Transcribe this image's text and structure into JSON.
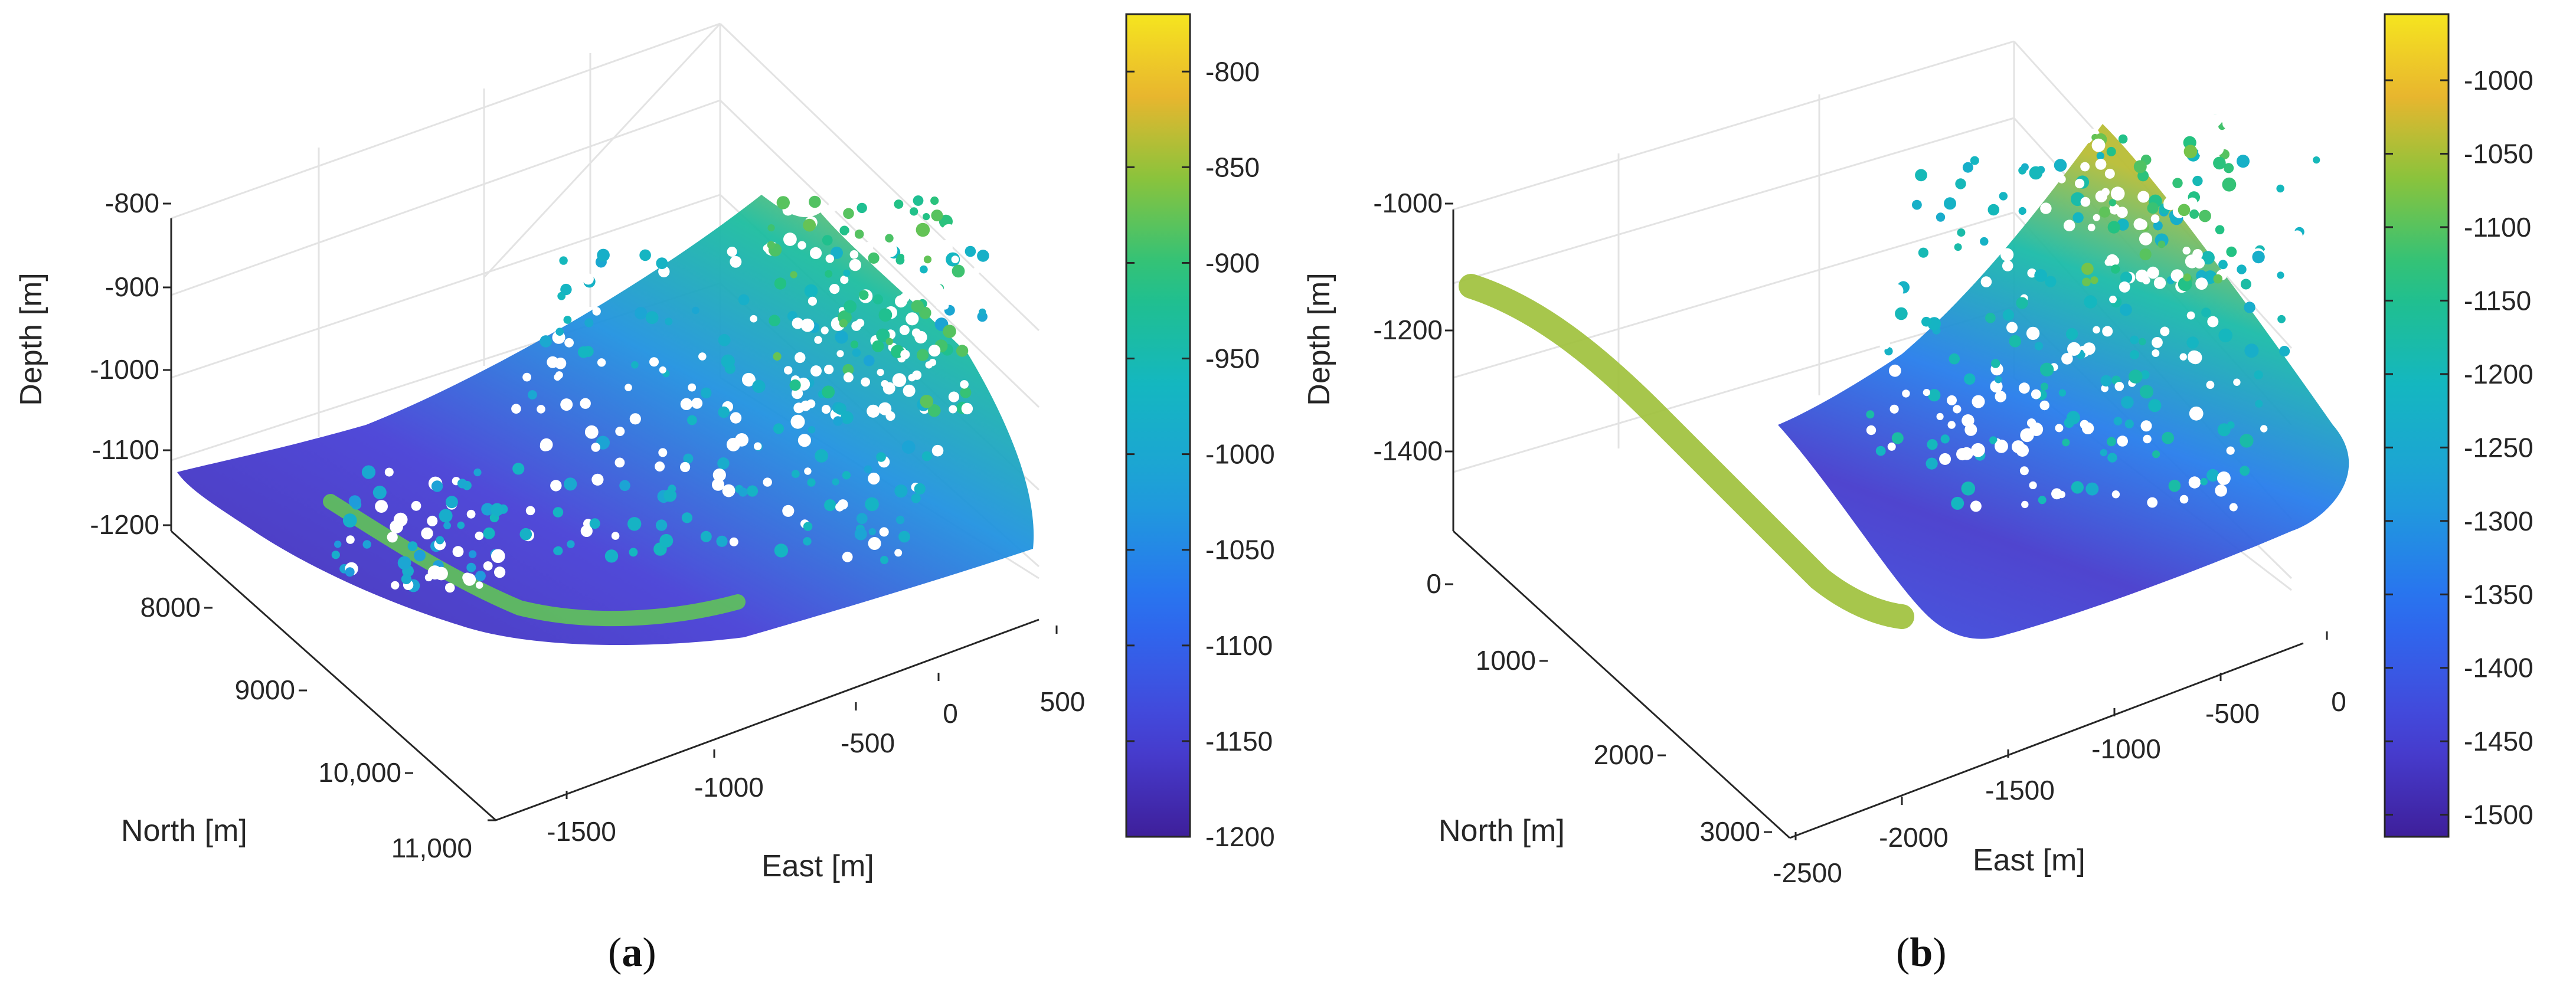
{
  "chart_data": [
    {
      "type": "scatter3d",
      "panel_label": "a",
      "xlabel": "East [m]",
      "ylabel": "North [m]",
      "zlabel": "Depth [m]",
      "x_ticks": [
        "-1500",
        "-1000",
        "-500",
        "0",
        "500"
      ],
      "y_ticks": [
        "8000",
        "9000",
        "10,000",
        "11,000"
      ],
      "z_ticks": [
        "-800",
        "-900",
        "-1000",
        "-1100",
        "-1200"
      ],
      "colorbar": {
        "min": -1200,
        "max": -770,
        "ticks": [
          -800,
          -850,
          -900,
          -950,
          -1000,
          -1050,
          -1100,
          -1150,
          -1200
        ]
      },
      "colors": {
        "low": "#3b1f99",
        "mid": "#1ea0d9",
        "high": "#f5e51f"
      }
    },
    {
      "type": "scatter3d",
      "panel_label": "b",
      "xlabel": "East [m]",
      "ylabel": "North [m]",
      "zlabel": "Depth [m]",
      "x_ticks": [
        "-2500",
        "-2000",
        "-1500",
        "-1000",
        "-500",
        "0"
      ],
      "y_ticks": [
        "0",
        "1000",
        "2000",
        "3000"
      ],
      "z_ticks": [
        "-1000",
        "-1200",
        "-1400"
      ],
      "colorbar": {
        "min": -1515,
        "max": -955,
        "ticks": [
          -1000,
          -1050,
          -1100,
          -1150,
          -1200,
          -1250,
          -1300,
          -1350,
          -1400,
          -1450,
          -1500
        ]
      },
      "colors": {
        "low": "#3b1f99",
        "mid": "#1ea0d9",
        "high": "#f5e51f"
      }
    }
  ]
}
